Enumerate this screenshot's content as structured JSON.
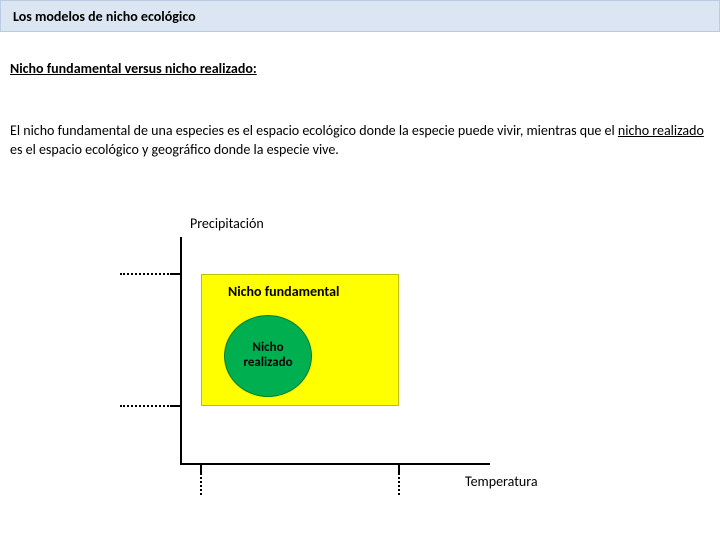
{
  "header": {
    "title": "Los modelos de nicho ecológico"
  },
  "subtitle": "Nicho fundamental versus nicho realizado:",
  "body": {
    "part1": "El nicho fundamental de una especies es el espacio ecológico donde la especie puede vivir, mientras que el ",
    "underlined": "nicho realizado",
    "part2": " es el espacio ecológico y geográfico donde la especie vive."
  },
  "diagram": {
    "y_axis_label": "Precipitación",
    "x_axis_label": "Temperatura",
    "fundamental_label": "Nicho fundamental",
    "realized_label_line1": "Nicho",
    "realized_label_line2": "realizado",
    "colors": {
      "fundamental_fill": "#ffff00",
      "realized_fill": "#00b050",
      "axis": "#000000",
      "header_bg": "#dce6f2"
    }
  }
}
